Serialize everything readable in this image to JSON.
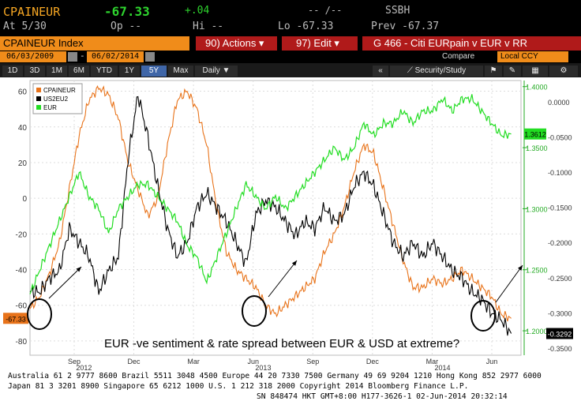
{
  "header": {
    "ticker": "CPAINEUR",
    "last": "-67.33",
    "change": "+.04",
    "dashes": "-- /--",
    "source": "SSBH",
    "at_label": "At 5/30",
    "op_label": "Op --",
    "hi_label": "Hi --",
    "lo_label": "Lo -67.33",
    "prev_label": "Prev -67.37"
  },
  "toolbar": {
    "index_label": "CPAINEUR Index",
    "actions_label": "90) Actions ▾",
    "edit_label": "97) Edit ▾",
    "chart_title": "G 466 - Citi EURpain v EUR v RR",
    "start_date": "06/03/2009",
    "end_date": "06/02/2014",
    "compare_label": "Compare",
    "currency_label": "Local CCY"
  },
  "tabs": [
    "1D",
    "3D",
    "1M",
    "6M",
    "YTD",
    "1Y",
    "5Y",
    "Max",
    "Daily ▼"
  ],
  "active_tab": "5Y",
  "security_label": "Security/Study",
  "chart_data": {
    "type": "line",
    "legend": [
      "CPAINEUR",
      "US2EU2",
      "EUR"
    ],
    "annotation": "EUR -ve sentiment & rate spread between EUR & USD at extreme?",
    "x_ticks": [
      "Sep",
      "Dec",
      "Mar",
      "Jun",
      "Sep",
      "Dec",
      "Mar",
      "Jun"
    ],
    "year_labels": [
      "2012",
      "2013",
      "2014"
    ],
    "left_axis": {
      "ticks": [
        60,
        40,
        20,
        0,
        -20,
        -40,
        -60,
        -80
      ],
      "range": [
        -88,
        66
      ],
      "last_label": "-67.33"
    },
    "right_axis_eur": {
      "ticks": [
        "1.4000",
        "1.3500",
        "1.3000",
        "1.2500",
        "1.2000"
      ],
      "range": [
        1.18,
        1.405
      ],
      "last_label": "1.3612"
    },
    "right_axis_spread": {
      "ticks": [
        "0.0000",
        "-0.0500",
        "-0.1000",
        "-0.1500",
        "-0.2000",
        "-0.2500",
        "-0.3000",
        "-0.3500"
      ],
      "range": [
        -0.36,
        0.03
      ],
      "last_label": "-0.3292"
    },
    "series": [
      {
        "name": "CPAINEUR",
        "color": "#e8731a",
        "axis": "left",
        "points": [
          [
            0,
            -62
          ],
          [
            0.02,
            -55
          ],
          [
            0.04,
            -42
          ],
          [
            0.06,
            -25
          ],
          [
            0.08,
            5
          ],
          [
            0.1,
            35
          ],
          [
            0.12,
            55
          ],
          [
            0.14,
            62
          ],
          [
            0.16,
            58
          ],
          [
            0.18,
            45
          ],
          [
            0.2,
            20
          ],
          [
            0.22,
            5
          ],
          [
            0.24,
            -10
          ],
          [
            0.26,
            0
          ],
          [
            0.28,
            30
          ],
          [
            0.3,
            55
          ],
          [
            0.32,
            60
          ],
          [
            0.34,
            50
          ],
          [
            0.36,
            30
          ],
          [
            0.38,
            -5
          ],
          [
            0.4,
            -30
          ],
          [
            0.42,
            -40
          ],
          [
            0.44,
            -45
          ],
          [
            0.46,
            -50
          ],
          [
            0.48,
            -60
          ],
          [
            0.5,
            -65
          ],
          [
            0.52,
            -60
          ],
          [
            0.54,
            -55
          ],
          [
            0.56,
            -50
          ],
          [
            0.58,
            -45
          ],
          [
            0.6,
            -30
          ],
          [
            0.62,
            -20
          ],
          [
            0.64,
            -5
          ],
          [
            0.66,
            15
          ],
          [
            0.68,
            30
          ],
          [
            0.7,
            25
          ],
          [
            0.72,
            5
          ],
          [
            0.74,
            -15
          ],
          [
            0.76,
            -35
          ],
          [
            0.78,
            -50
          ],
          [
            0.8,
            -50
          ],
          [
            0.82,
            -45
          ],
          [
            0.84,
            -48
          ],
          [
            0.86,
            -45
          ],
          [
            0.88,
            -40
          ],
          [
            0.9,
            -45
          ],
          [
            0.92,
            -50
          ],
          [
            0.94,
            -55
          ],
          [
            0.96,
            -65
          ],
          [
            0.98,
            -67.33
          ]
        ]
      },
      {
        "name": "US2EU2",
        "color": "#000000",
        "axis": "spread",
        "points": [
          [
            0,
            -0.27
          ],
          [
            0.02,
            -0.27
          ],
          [
            0.04,
            -0.25
          ],
          [
            0.06,
            -0.24
          ],
          [
            0.08,
            -0.18
          ],
          [
            0.1,
            -0.2
          ],
          [
            0.12,
            -0.22
          ],
          [
            0.14,
            -0.27
          ],
          [
            0.16,
            -0.24
          ],
          [
            0.18,
            -0.22
          ],
          [
            0.2,
            -0.08
          ],
          [
            0.22,
            0.01
          ],
          [
            0.24,
            -0.05
          ],
          [
            0.26,
            -0.12
          ],
          [
            0.28,
            -0.18
          ],
          [
            0.3,
            -0.22
          ],
          [
            0.32,
            -0.2
          ],
          [
            0.34,
            -0.15
          ],
          [
            0.36,
            -0.13
          ],
          [
            0.38,
            -0.15
          ],
          [
            0.4,
            -0.17
          ],
          [
            0.42,
            -0.2
          ],
          [
            0.44,
            -0.23
          ],
          [
            0.46,
            -0.16
          ],
          [
            0.48,
            -0.14
          ],
          [
            0.5,
            -0.15
          ],
          [
            0.52,
            -0.17
          ],
          [
            0.54,
            -0.19
          ],
          [
            0.56,
            -0.17
          ],
          [
            0.58,
            -0.18
          ],
          [
            0.6,
            -0.15
          ],
          [
            0.62,
            -0.17
          ],
          [
            0.64,
            -0.16
          ],
          [
            0.66,
            -0.12
          ],
          [
            0.68,
            -0.1
          ],
          [
            0.7,
            -0.12
          ],
          [
            0.72,
            -0.16
          ],
          [
            0.74,
            -0.2
          ],
          [
            0.76,
            -0.22
          ],
          [
            0.78,
            -0.2
          ],
          [
            0.8,
            -0.22
          ],
          [
            0.82,
            -0.2
          ],
          [
            0.84,
            -0.22
          ],
          [
            0.86,
            -0.24
          ],
          [
            0.88,
            -0.25
          ],
          [
            0.9,
            -0.27
          ],
          [
            0.92,
            -0.28
          ],
          [
            0.94,
            -0.3
          ],
          [
            0.96,
            -0.31
          ],
          [
            0.98,
            -0.3292
          ]
        ]
      },
      {
        "name": "EUR",
        "color": "#22dd22",
        "axis": "eur",
        "points": [
          [
            0,
            1.23
          ],
          [
            0.02,
            1.25
          ],
          [
            0.04,
            1.27
          ],
          [
            0.06,
            1.29
          ],
          [
            0.08,
            1.31
          ],
          [
            0.1,
            1.33
          ],
          [
            0.12,
            1.31
          ],
          [
            0.14,
            1.3
          ],
          [
            0.16,
            1.28
          ],
          [
            0.18,
            1.3
          ],
          [
            0.2,
            1.31
          ],
          [
            0.22,
            1.32
          ],
          [
            0.24,
            1.32
          ],
          [
            0.26,
            1.31
          ],
          [
            0.28,
            1.3
          ],
          [
            0.3,
            1.29
          ],
          [
            0.32,
            1.27
          ],
          [
            0.34,
            1.26
          ],
          [
            0.36,
            1.24
          ],
          [
            0.38,
            1.26
          ],
          [
            0.4,
            1.28
          ],
          [
            0.42,
            1.3
          ],
          [
            0.44,
            1.32
          ],
          [
            0.46,
            1.31
          ],
          [
            0.48,
            1.3
          ],
          [
            0.5,
            1.31
          ],
          [
            0.52,
            1.3
          ],
          [
            0.54,
            1.31
          ],
          [
            0.56,
            1.32
          ],
          [
            0.58,
            1.33
          ],
          [
            0.6,
            1.34
          ],
          [
            0.62,
            1.35
          ],
          [
            0.64,
            1.34
          ],
          [
            0.66,
            1.35
          ],
          [
            0.68,
            1.37
          ],
          [
            0.7,
            1.36
          ],
          [
            0.72,
            1.37
          ],
          [
            0.74,
            1.37
          ],
          [
            0.76,
            1.38
          ],
          [
            0.78,
            1.37
          ],
          [
            0.8,
            1.38
          ],
          [
            0.82,
            1.38
          ],
          [
            0.84,
            1.39
          ],
          [
            0.86,
            1.38
          ],
          [
            0.88,
            1.39
          ],
          [
            0.9,
            1.39
          ],
          [
            0.92,
            1.38
          ],
          [
            0.94,
            1.37
          ],
          [
            0.96,
            1.36
          ],
          [
            0.98,
            1.3612
          ]
        ]
      }
    ]
  },
  "footer": {
    "line1": "Australia 61 2 9777 8600 Brazil 5511 3048 4500 Europe 44 20 7330 7500 Germany 49 69 9204 1210 Hong Kong 852 2977 6000",
    "line2": "Japan 81 3 3201 8900        Singapore 65 6212 1000       U.S. 1 212 318 2000          Copyright 2014 Bloomberg Finance L.P.",
    "line3": "SN 848474 HKT  GMT+8:00 H177-3626-1 02-Jun-2014 20:32:14"
  }
}
